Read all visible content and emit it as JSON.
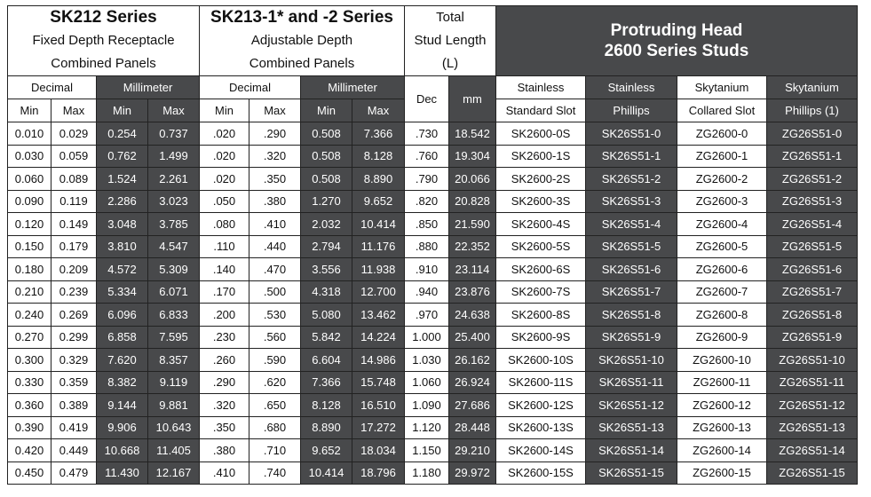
{
  "header": {
    "sk212": {
      "title": "SK212 Series",
      "line1": "Fixed Depth Receptacle",
      "line2": "Combined Panels"
    },
    "sk213": {
      "title": "SK213-1* and -2 Series",
      "line1": "Adjustable Depth",
      "line2": "Combined Panels"
    },
    "total": {
      "line1": "Total",
      "line2": "Stud Length",
      "line3": "(L)"
    },
    "protruding": {
      "line1": "Protruding Head",
      "line2": "2600 Series Studs"
    },
    "decimal": "Decimal",
    "millimeter": "Millimeter",
    "min": "Min",
    "max": "Max",
    "dec": "Dec",
    "mm": "mm",
    "stainless_standard": {
      "line1": "Stainless",
      "line2": "Standard Slot"
    },
    "stainless_phillips": {
      "line1": "Stainless",
      "line2": "Phillips"
    },
    "skytanium_collared": {
      "line1": "Skytanium",
      "line2": "Collared Slot"
    },
    "skytanium_phillips": {
      "line1": "Skytanium",
      "line2": "Phillips (1)"
    }
  },
  "rows": [
    [
      "0.010",
      "0.029",
      "0.254",
      "0.737",
      ".020",
      ".290",
      "0.508",
      "7.366",
      ".730",
      "18.542",
      "SK2600-0S",
      "SK26S51-0",
      "ZG2600-0",
      "ZG26S51-0"
    ],
    [
      "0.030",
      "0.059",
      "0.762",
      "1.499",
      ".020",
      ".320",
      "0.508",
      "8.128",
      ".760",
      "19.304",
      "SK2600-1S",
      "SK26S51-1",
      "ZG2600-1",
      "ZG26S51-1"
    ],
    [
      "0.060",
      "0.089",
      "1.524",
      "2.261",
      ".020",
      ".350",
      "0.508",
      "8.890",
      ".790",
      "20.066",
      "SK2600-2S",
      "SK26S51-2",
      "ZG2600-2",
      "ZG26S51-2"
    ],
    [
      "0.090",
      "0.119",
      "2.286",
      "3.023",
      ".050",
      ".380",
      "1.270",
      "9.652",
      ".820",
      "20.828",
      "SK2600-3S",
      "SK26S51-3",
      "ZG2600-3",
      "ZG26S51-3"
    ],
    [
      "0.120",
      "0.149",
      "3.048",
      "3.785",
      ".080",
      ".410",
      "2.032",
      "10.414",
      ".850",
      "21.590",
      "SK2600-4S",
      "SK26S51-4",
      "ZG2600-4",
      "ZG26S51-4"
    ],
    [
      "0.150",
      "0.179",
      "3.810",
      "4.547",
      ".110",
      ".440",
      "2.794",
      "11.176",
      ".880",
      "22.352",
      "SK2600-5S",
      "SK26S51-5",
      "ZG2600-5",
      "ZG26S51-5"
    ],
    [
      "0.180",
      "0.209",
      "4.572",
      "5.309",
      ".140",
      ".470",
      "3.556",
      "11.938",
      ".910",
      "23.114",
      "SK2600-6S",
      "SK26S51-6",
      "ZG2600-6",
      "ZG26S51-6"
    ],
    [
      "0.210",
      "0.239",
      "5.334",
      "6.071",
      ".170",
      ".500",
      "4.318",
      "12.700",
      ".940",
      "23.876",
      "SK2600-7S",
      "SK26S51-7",
      "ZG2600-7",
      "ZG26S51-7"
    ],
    [
      "0.240",
      "0.269",
      "6.096",
      "6.833",
      ".200",
      ".530",
      "5.080",
      "13.462",
      ".970",
      "24.638",
      "SK2600-8S",
      "SK26S51-8",
      "ZG2600-8",
      "ZG26S51-8"
    ],
    [
      "0.270",
      "0.299",
      "6.858",
      "7.595",
      ".230",
      ".560",
      "5.842",
      "14.224",
      "1.000",
      "25.400",
      "SK2600-9S",
      "SK26S51-9",
      "ZG2600-9",
      "ZG26S51-9"
    ],
    [
      "0.300",
      "0.329",
      "7.620",
      "8.357",
      ".260",
      ".590",
      "6.604",
      "14.986",
      "1.030",
      "26.162",
      "SK2600-10S",
      "SK26S51-10",
      "ZG2600-10",
      "ZG26S51-10"
    ],
    [
      "0.330",
      "0.359",
      "8.382",
      "9.119",
      ".290",
      ".620",
      "7.366",
      "15.748",
      "1.060",
      "26.924",
      "SK2600-11S",
      "SK26S51-11",
      "ZG2600-11",
      "ZG26S51-11"
    ],
    [
      "0.360",
      "0.389",
      "9.144",
      "9.881",
      ".320",
      ".650",
      "8.128",
      "16.510",
      "1.090",
      "27.686",
      "SK2600-12S",
      "SK26S51-12",
      "ZG2600-12",
      "ZG26S51-12"
    ],
    [
      "0.390",
      "0.419",
      "9.906",
      "10.643",
      ".350",
      ".680",
      "8.890",
      "17.272",
      "1.120",
      "28.448",
      "SK2600-13S",
      "SK26S51-13",
      "ZG2600-13",
      "ZG26S51-13"
    ],
    [
      "0.420",
      "0.449",
      "10.668",
      "11.405",
      ".380",
      ".710",
      "9.652",
      "18.034",
      "1.150",
      "29.210",
      "SK2600-14S",
      "SK26S51-14",
      "ZG2600-14",
      "ZG26S51-14"
    ],
    [
      "0.450",
      "0.479",
      "11.430",
      "12.167",
      ".410",
      ".740",
      "10.414",
      "18.796",
      "1.180",
      "29.972",
      "SK2600-15S",
      "SK26S51-15",
      "ZG2600-15",
      "ZG26S51-15"
    ]
  ]
}
